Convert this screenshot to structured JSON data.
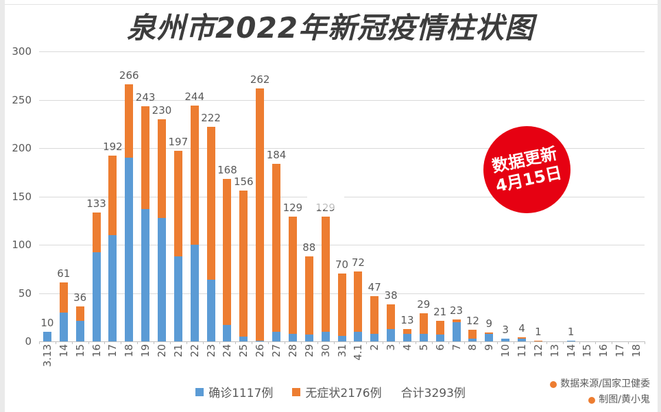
{
  "title": "泉州市2022年新冠疫情柱状图",
  "badge": {
    "line1": "数据更新",
    "line2": "4月15日",
    "color": "#e60112",
    "text_color": "#ffffff"
  },
  "legend": {
    "confirmed_label": "确诊1117例",
    "asymptomatic_label": "无症状2176例",
    "total_label": "合计3293例"
  },
  "credits": {
    "source": "数据来源/国家卫健委",
    "author": "制图/黄小鬼",
    "bullet_color": "#ed7d31"
  },
  "colors": {
    "confirmed": "#5b9bd5",
    "asymptomatic": "#ed7d31",
    "grid": "#d9d9d9",
    "axis": "#bfbfbf",
    "label": "#595959",
    "title": "#3d3d3d"
  },
  "chart_data": {
    "type": "bar",
    "stacked": true,
    "title": "泉州市2022年新冠疫情柱状图",
    "categories": [
      "3.13",
      "14",
      "15",
      "16",
      "17",
      "18",
      "19",
      "20",
      "21",
      "22",
      "23",
      "24",
      "25",
      "26",
      "27",
      "28",
      "29",
      "30",
      "31",
      "4.1",
      "2",
      "3",
      "4",
      "5",
      "6",
      "7",
      "8",
      "9",
      "10",
      "11",
      "12",
      "13",
      "14",
      "15",
      "16",
      "17",
      "18"
    ],
    "series": [
      {
        "name": "确诊",
        "color": "#5b9bd5",
        "values": [
          10,
          30,
          21,
          92,
          110,
          190,
          137,
          128,
          88,
          100,
          64,
          17,
          5,
          1,
          10,
          8,
          7,
          10,
          6,
          10,
          8,
          13,
          8,
          8,
          7,
          20,
          3,
          8,
          3,
          3,
          0,
          0,
          1,
          0,
          0,
          0,
          0
        ]
      },
      {
        "name": "无症状",
        "color": "#ed7d31",
        "values": [
          0,
          31,
          15,
          41,
          82,
          76,
          106,
          102,
          109,
          144,
          158,
          151,
          151,
          261,
          174,
          121,
          81,
          119,
          64,
          62,
          39,
          25,
          5,
          21,
          14,
          3,
          9,
          1,
          0,
          1,
          1,
          0,
          0,
          0,
          0,
          0,
          0
        ]
      }
    ],
    "totals": [
      10,
      61,
      36,
      133,
      192,
      266,
      243,
      230,
      197,
      244,
      222,
      168,
      156,
      262,
      184,
      129,
      88,
      129,
      70,
      72,
      47,
      38,
      13,
      29,
      21,
      23,
      12,
      9,
      3,
      4,
      1,
      0,
      1,
      0,
      0,
      0,
      0
    ],
    "total_labels": [
      "10",
      "61",
      "36",
      "133",
      "192",
      "266",
      "243",
      "230",
      "197",
      "244",
      "222",
      "168",
      "156",
      "262",
      "184",
      "129",
      "88",
      "129",
      "70",
      "72",
      "47",
      "38",
      "13",
      "29",
      "21",
      "23",
      "12",
      "9",
      "3",
      "4",
      "1",
      "",
      "1",
      "",
      "",
      "",
      ""
    ],
    "obscured_label_index": 17,
    "xlabel": "",
    "ylabel": "",
    "ylim": [
      0,
      300
    ],
    "yticks": [
      0,
      50,
      100,
      150,
      200,
      250,
      300
    ],
    "grid": true,
    "legend_position": "bottom"
  }
}
